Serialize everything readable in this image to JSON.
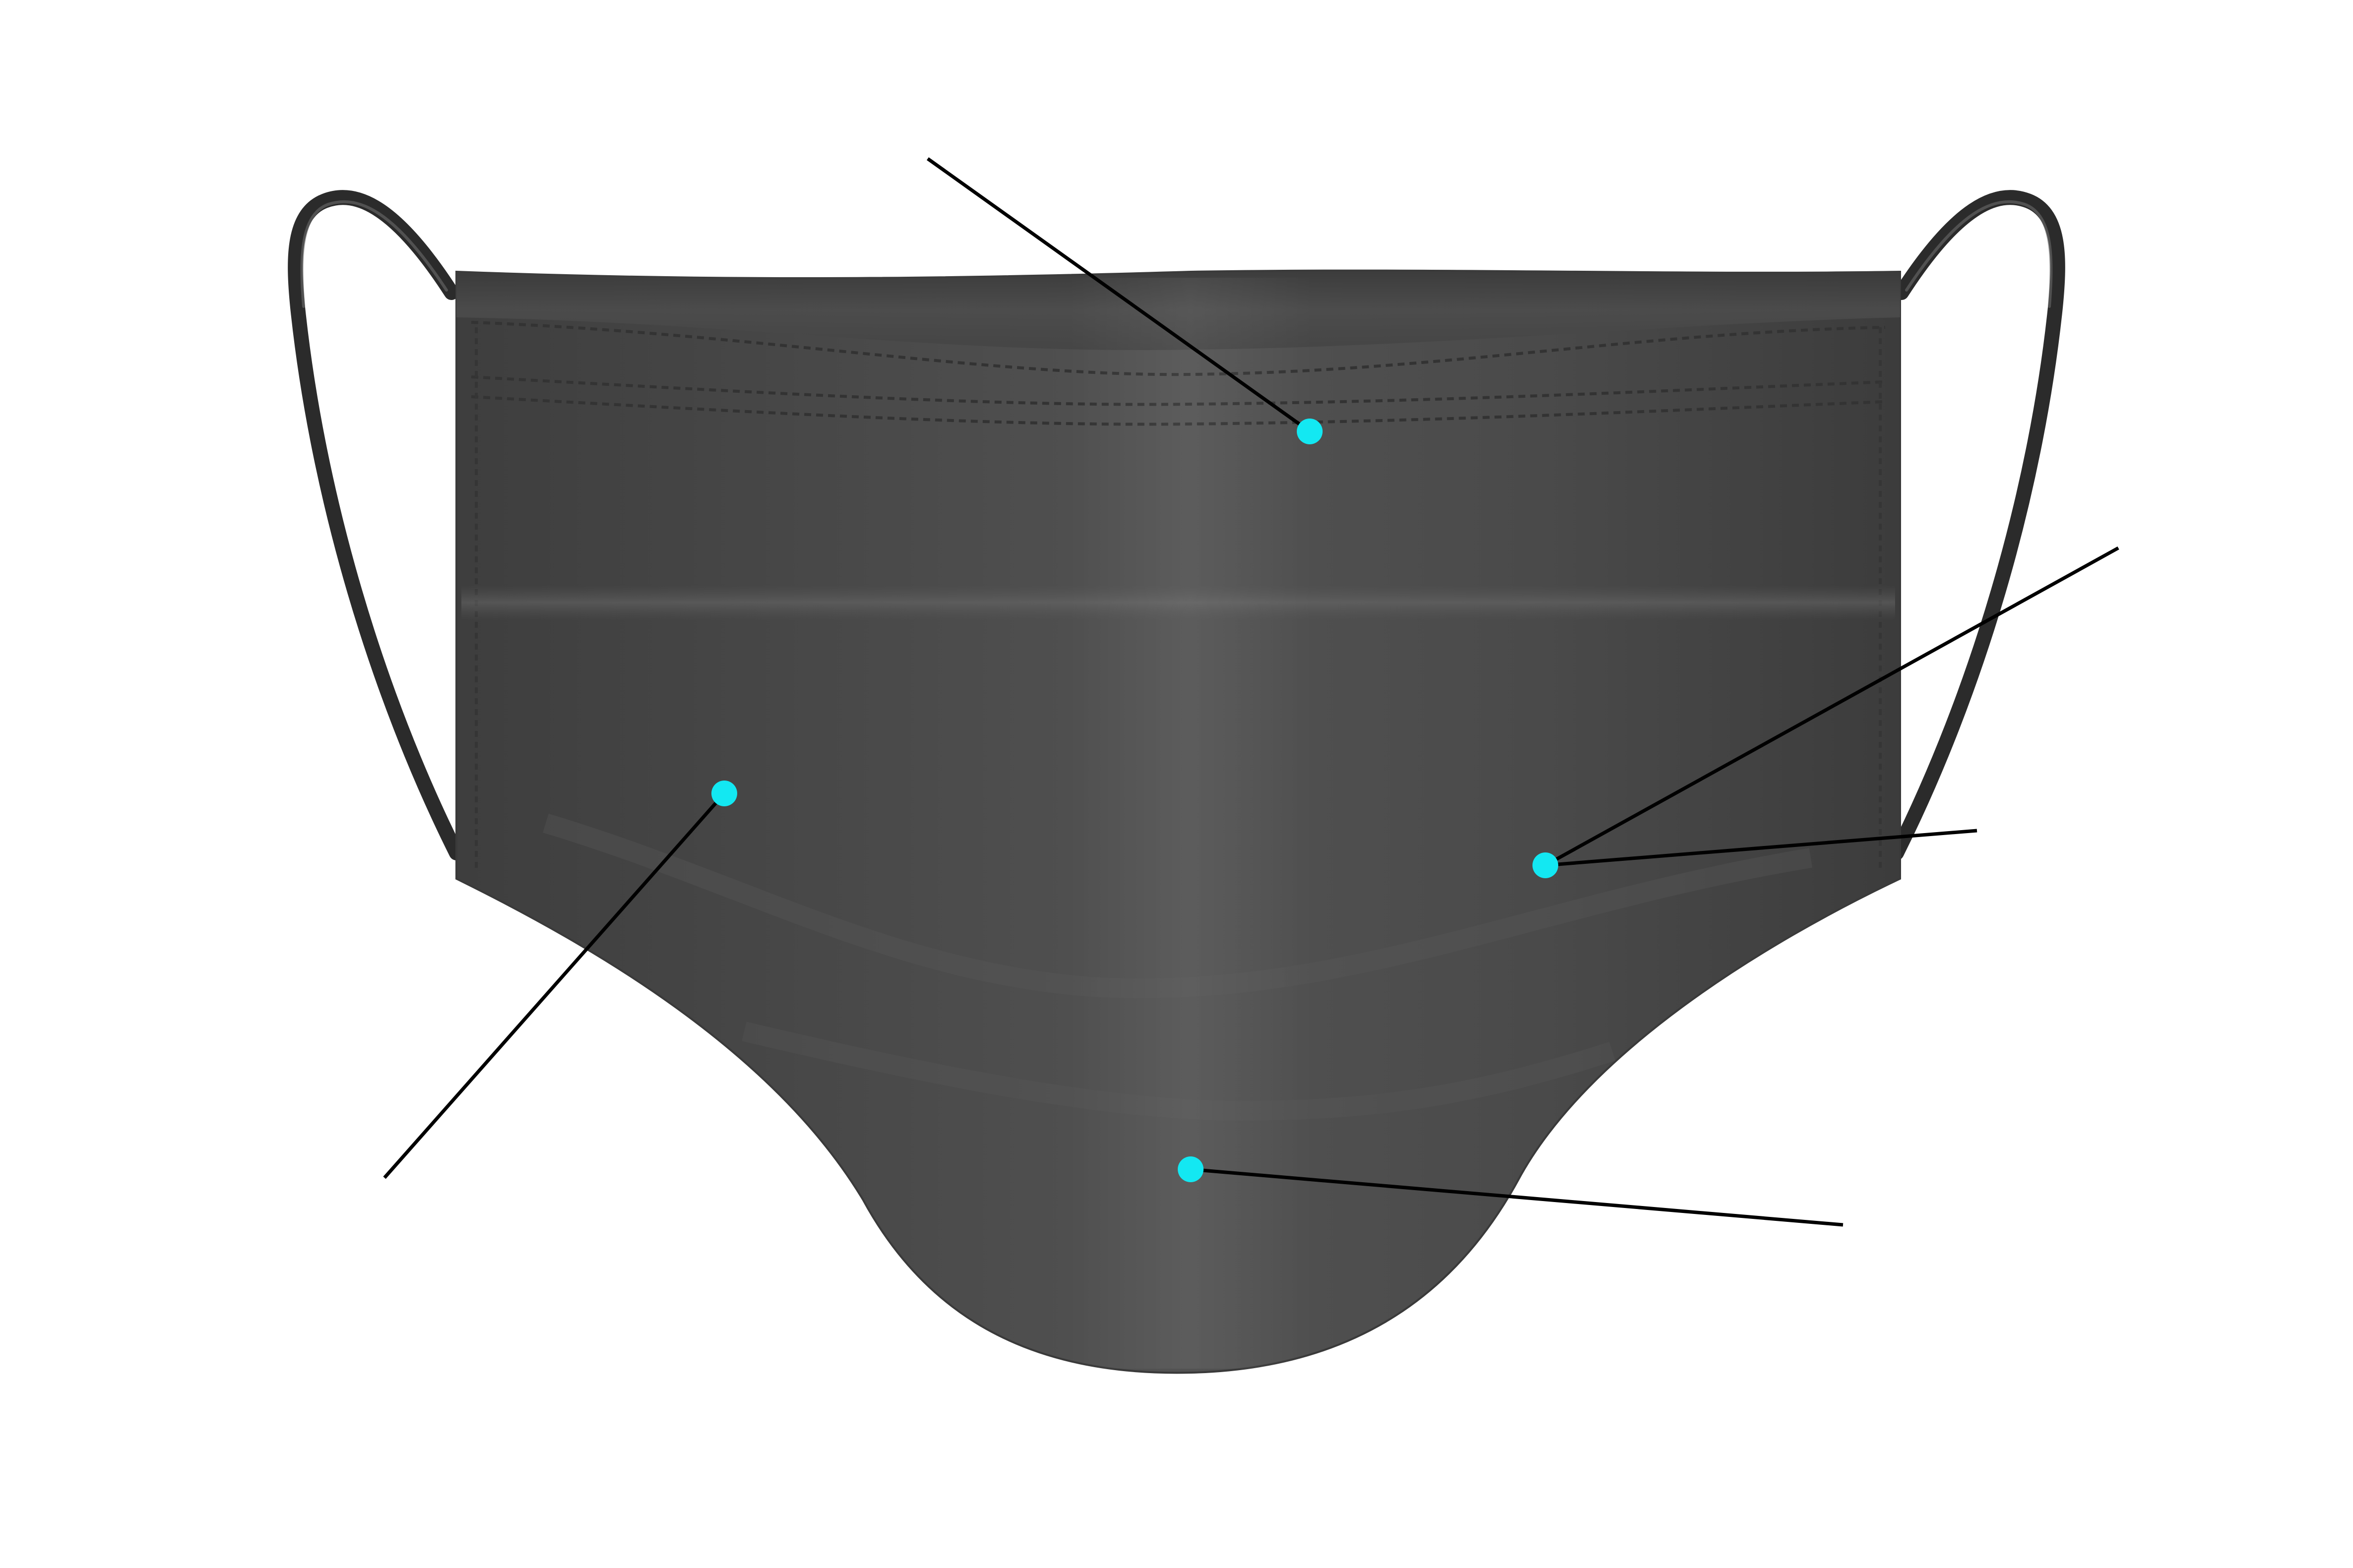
{
  "diagram": {
    "subject": "face-mask-icon",
    "colors": {
      "background": "#ffffff",
      "mask_body": "#4a4a4a",
      "mask_edge": "#3a3a3a",
      "ear_loop": "#2b2b2b",
      "ear_loop_highlight": "#6a6a6a",
      "stitching": "#333333",
      "marker": "#13e8f2",
      "leader_line": "#000000"
    },
    "callouts": [
      {
        "name": "callout-top-center"
      },
      {
        "name": "callout-left-panel"
      },
      {
        "name": "callout-right-panel-a"
      },
      {
        "name": "callout-right-panel-b"
      },
      {
        "name": "callout-chin"
      }
    ]
  }
}
